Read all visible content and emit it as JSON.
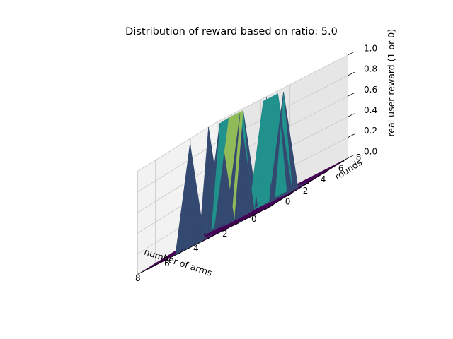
{
  "chart_data": {
    "type": "surface3d",
    "title": "Distribution of reward based on ratio: 5.0",
    "xlabel": "number of arms",
    "ylabel": "rounds",
    "zlabel": "real user reward (1 or 0)",
    "xlim": [
      0,
      9
    ],
    "ylim": [
      0,
      9
    ],
    "zlim": [
      0,
      1
    ],
    "x_ticks": [
      "0",
      "2",
      "4",
      "6",
      "8"
    ],
    "y_ticks": [
      "0",
      "2",
      "4",
      "6",
      "8"
    ],
    "z_ticks": [
      "0.0",
      "0.2",
      "0.4",
      "0.6",
      "0.8",
      "1.0"
    ],
    "colormap": "viridis",
    "grid": true,
    "x": [
      0,
      1,
      2,
      3,
      4,
      5,
      6,
      7,
      8,
      9
    ],
    "y": [
      0,
      1,
      2,
      3,
      4,
      5,
      6,
      7,
      8,
      9
    ],
    "z": [
      [
        0,
        0,
        0,
        0,
        0,
        0,
        0,
        0,
        0,
        0
      ],
      [
        0,
        0,
        0,
        0,
        0,
        0,
        1,
        0,
        0,
        0
      ],
      [
        0,
        0,
        0,
        0,
        0,
        0,
        0,
        0,
        0,
        0
      ],
      [
        0,
        0,
        0,
        0,
        0,
        0,
        0,
        0,
        0,
        0
      ],
      [
        0,
        0,
        0,
        0,
        0,
        0,
        0,
        0,
        0,
        0
      ],
      [
        0,
        0,
        1,
        0,
        0,
        1,
        0,
        0,
        0,
        0
      ],
      [
        0,
        0,
        0,
        1,
        1,
        0,
        0,
        1,
        0,
        0
      ],
      [
        0,
        0,
        0,
        0,
        0,
        0,
        1,
        1,
        0,
        0
      ],
      [
        0,
        0,
        0,
        0,
        0,
        1,
        0,
        0,
        0,
        1
      ],
      [
        0,
        0,
        0,
        0,
        0,
        0,
        0,
        0,
        0,
        0
      ]
    ],
    "colors": {
      "low": "#440154",
      "mid": "#21918c",
      "high": "#fde725",
      "pane_left": "#f2f2f2",
      "pane_back": "#e6e6e6",
      "pane_floor": "#ebebeb",
      "grid": "#c8c8c8"
    }
  }
}
